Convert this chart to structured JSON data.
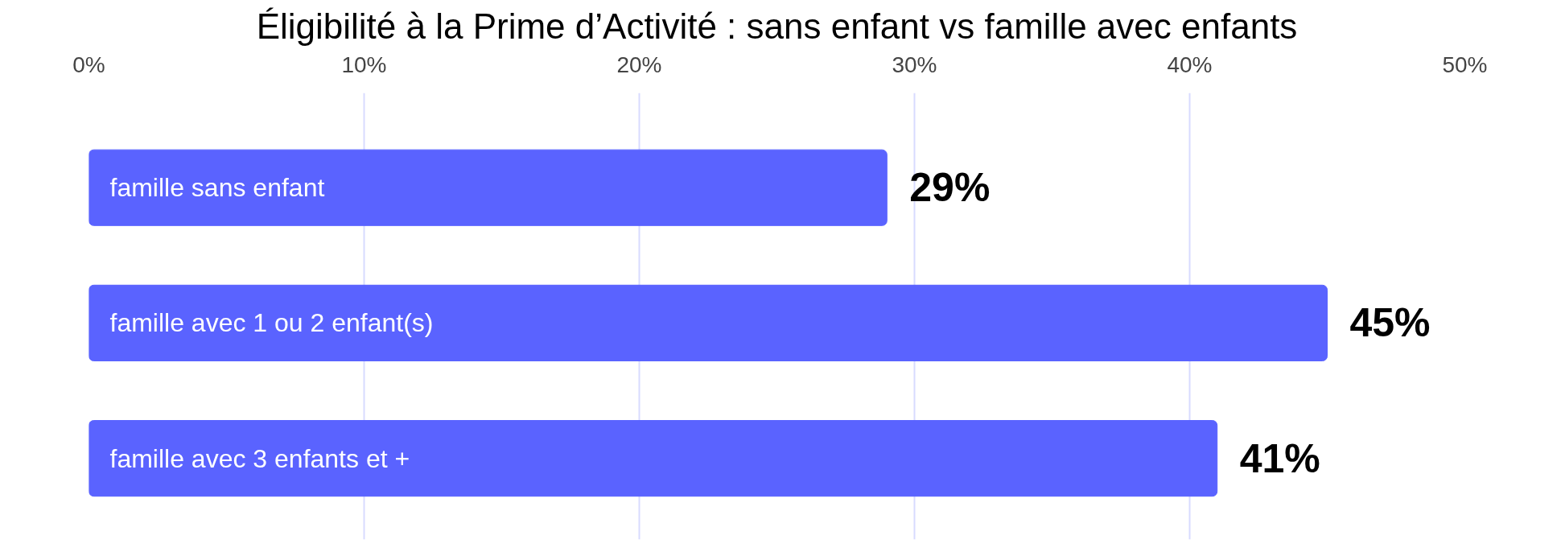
{
  "chart_data": {
    "type": "bar",
    "orientation": "horizontal",
    "title": "Éligibilité à la Prime d’Activité : sans enfant vs famille avec enfants",
    "categories": [
      "famille sans enfant",
      "famille avec 1 ou 2 enfant(s)",
      "famille avec 3 enfants et +"
    ],
    "values": [
      29,
      45,
      41
    ],
    "color": "#5a63ff",
    "value_labels": [
      "29%",
      "45%",
      "41%"
    ],
    "xlim": [
      0,
      50
    ],
    "xticks": [
      {
        "value": 0,
        "label": "0%"
      },
      {
        "value": 10,
        "label": "10%"
      },
      {
        "value": 20,
        "label": "20%"
      },
      {
        "value": 30,
        "label": "30%"
      },
      {
        "value": 40,
        "label": "40%"
      },
      {
        "value": 50,
        "label": "50%"
      }
    ],
    "grid": "x"
  }
}
